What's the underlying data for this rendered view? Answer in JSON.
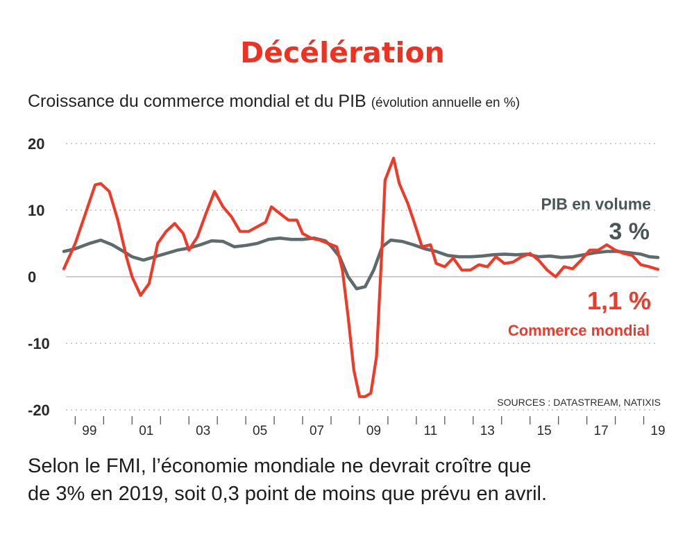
{
  "header": {
    "title": "Décélération",
    "subtitle": "Croissance du commerce mondial et du PIB",
    "subtitle_unit": "(évolution annuelle en %)"
  },
  "caption": {
    "line1": "Selon le FMI, l’économie mondiale ne devrait croître que",
    "line2": "de 3% en 2019, soit 0,3 point de moins que prévu en avril."
  },
  "colors": {
    "commerce": "#f03a28",
    "pib": "#5d6b6c",
    "title": "#ec3323"
  },
  "chart_data": {
    "type": "line",
    "title": "Décélération",
    "ylim": [
      -20,
      20
    ],
    "xlim": [
      1998.6,
      2019.5
    ],
    "yticks": [
      20,
      10,
      0,
      -10,
      -20
    ],
    "xticks": [
      {
        "label": "99",
        "x": 1999.5
      },
      {
        "label": "01",
        "x": 2001.5
      },
      {
        "label": "03",
        "x": 2003.5
      },
      {
        "label": "05",
        "x": 2005.5
      },
      {
        "label": "07",
        "x": 2007.5
      },
      {
        "label": "09",
        "x": 2009.5
      },
      {
        "label": "11",
        "x": 2011.5
      },
      {
        "label": "13",
        "x": 2013.5
      },
      {
        "label": "15",
        "x": 2015.5
      },
      {
        "label": "17",
        "x": 2017.5
      },
      {
        "label": "19",
        "x": 2019.5
      }
    ],
    "grid": true,
    "source": "SOURCES : DATASTREAM, NATIXIS",
    "series": [
      {
        "name": "Commerce mondial",
        "end_label": "1,1 %",
        "color": "#f03a28",
        "points": [
          [
            1998.6,
            1.2
          ],
          [
            1999.0,
            5.0
          ],
          [
            1999.4,
            10.0
          ],
          [
            1999.7,
            13.8
          ],
          [
            1999.9,
            14.0
          ],
          [
            2000.2,
            12.8
          ],
          [
            2000.5,
            8.5
          ],
          [
            2000.8,
            3.0
          ],
          [
            2001.0,
            0.0
          ],
          [
            2001.3,
            -2.8
          ],
          [
            2001.6,
            -1.0
          ],
          [
            2001.9,
            5.0
          ],
          [
            2002.2,
            6.8
          ],
          [
            2002.5,
            8.0
          ],
          [
            2002.8,
            6.5
          ],
          [
            2003.0,
            4.0
          ],
          [
            2003.3,
            6.0
          ],
          [
            2003.6,
            9.5
          ],
          [
            2003.9,
            12.8
          ],
          [
            2004.2,
            10.5
          ],
          [
            2004.5,
            9.0
          ],
          [
            2004.8,
            6.8
          ],
          [
            2005.1,
            6.8
          ],
          [
            2005.4,
            7.5
          ],
          [
            2005.7,
            8.2
          ],
          [
            2005.9,
            10.5
          ],
          [
            2006.2,
            9.5
          ],
          [
            2006.5,
            8.5
          ],
          [
            2006.8,
            8.5
          ],
          [
            2007.0,
            6.5
          ],
          [
            2007.3,
            5.8
          ],
          [
            2007.6,
            5.5
          ],
          [
            2007.9,
            5.0
          ],
          [
            2008.2,
            4.5
          ],
          [
            2008.4,
            1.0
          ],
          [
            2008.6,
            -6.0
          ],
          [
            2008.8,
            -14.0
          ],
          [
            2009.0,
            -18.0
          ],
          [
            2009.2,
            -18.0
          ],
          [
            2009.4,
            -17.5
          ],
          [
            2009.6,
            -12.0
          ],
          [
            2009.8,
            5.0
          ],
          [
            2009.9,
            14.5
          ],
          [
            2010.2,
            17.8
          ],
          [
            2010.4,
            14.0
          ],
          [
            2010.7,
            11.0
          ],
          [
            2010.9,
            8.5
          ],
          [
            2011.2,
            4.5
          ],
          [
            2011.5,
            4.8
          ],
          [
            2011.7,
            2.0
          ],
          [
            2012.0,
            1.5
          ],
          [
            2012.3,
            2.8
          ],
          [
            2012.6,
            1.0
          ],
          [
            2012.9,
            1.0
          ],
          [
            2013.2,
            1.8
          ],
          [
            2013.5,
            1.5
          ],
          [
            2013.8,
            3.0
          ],
          [
            2014.1,
            2.0
          ],
          [
            2014.4,
            2.2
          ],
          [
            2014.7,
            3.0
          ],
          [
            2015.0,
            3.5
          ],
          [
            2015.3,
            2.5
          ],
          [
            2015.6,
            1.0
          ],
          [
            2015.9,
            0.0
          ],
          [
            2016.2,
            1.5
          ],
          [
            2016.5,
            1.2
          ],
          [
            2016.8,
            2.5
          ],
          [
            2017.1,
            4.0
          ],
          [
            2017.4,
            4.0
          ],
          [
            2017.7,
            4.8
          ],
          [
            2018.0,
            4.0
          ],
          [
            2018.3,
            3.5
          ],
          [
            2018.6,
            3.2
          ],
          [
            2018.9,
            1.8
          ],
          [
            2019.2,
            1.5
          ],
          [
            2019.5,
            1.1
          ]
        ]
      },
      {
        "name": "PIB en volume",
        "end_label": "3 %",
        "color": "#5d6b6c",
        "points": [
          [
            1998.6,
            3.8
          ],
          [
            1999.0,
            4.2
          ],
          [
            1999.5,
            5.0
          ],
          [
            1999.9,
            5.5
          ],
          [
            2000.3,
            4.8
          ],
          [
            2000.7,
            3.8
          ],
          [
            2001.0,
            3.0
          ],
          [
            2001.4,
            2.5
          ],
          [
            2001.8,
            3.0
          ],
          [
            2002.2,
            3.5
          ],
          [
            2002.6,
            4.0
          ],
          [
            2003.0,
            4.3
          ],
          [
            2003.4,
            4.8
          ],
          [
            2003.8,
            5.4
          ],
          [
            2004.2,
            5.3
          ],
          [
            2004.6,
            4.5
          ],
          [
            2005.0,
            4.7
          ],
          [
            2005.4,
            5.0
          ],
          [
            2005.8,
            5.6
          ],
          [
            2006.2,
            5.8
          ],
          [
            2006.6,
            5.6
          ],
          [
            2007.0,
            5.6
          ],
          [
            2007.4,
            5.8
          ],
          [
            2007.8,
            5.4
          ],
          [
            2008.0,
            4.6
          ],
          [
            2008.3,
            3.0
          ],
          [
            2008.6,
            0.0
          ],
          [
            2008.9,
            -1.8
          ],
          [
            2009.2,
            -1.5
          ],
          [
            2009.5,
            1.0
          ],
          [
            2009.8,
            4.5
          ],
          [
            2010.1,
            5.5
          ],
          [
            2010.5,
            5.3
          ],
          [
            2010.9,
            4.8
          ],
          [
            2011.3,
            4.2
          ],
          [
            2011.7,
            3.8
          ],
          [
            2012.1,
            3.2
          ],
          [
            2012.5,
            3.0
          ],
          [
            2012.9,
            3.0
          ],
          [
            2013.3,
            3.1
          ],
          [
            2013.7,
            3.3
          ],
          [
            2014.1,
            3.4
          ],
          [
            2014.5,
            3.3
          ],
          [
            2014.9,
            3.4
          ],
          [
            2015.3,
            3.0
          ],
          [
            2015.7,
            3.1
          ],
          [
            2016.1,
            2.9
          ],
          [
            2016.5,
            3.0
          ],
          [
            2016.9,
            3.3
          ],
          [
            2017.3,
            3.6
          ],
          [
            2017.7,
            3.8
          ],
          [
            2018.1,
            3.8
          ],
          [
            2018.5,
            3.6
          ],
          [
            2018.9,
            3.4
          ],
          [
            2019.2,
            3.0
          ],
          [
            2019.5,
            2.9
          ]
        ]
      }
    ]
  }
}
